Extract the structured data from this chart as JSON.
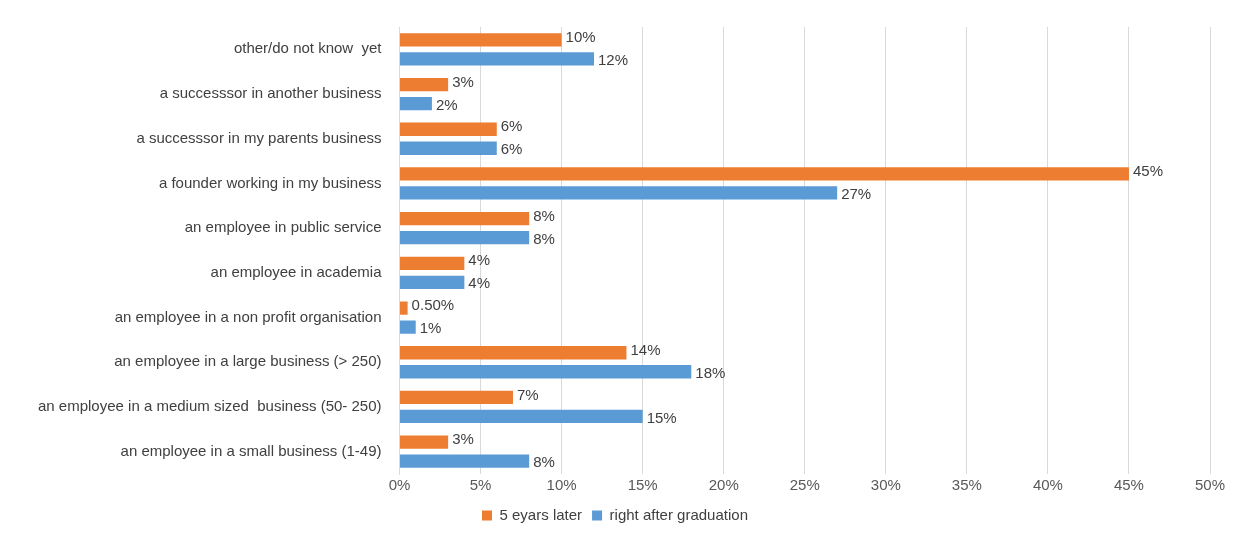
{
  "chart_data": {
    "type": "bar",
    "orientation": "horizontal",
    "categories": [
      "other/do not know  yet",
      "a successsor in another business",
      "a successsor in my parents business",
      "a founder working in my business",
      "an employee in public service",
      "an employee in academia",
      "an employee in a non profit organisation",
      "an employee in a large business (> 250)",
      "an employee in a medium sized  business (50- 250)",
      "an employee in a small business (1-49)"
    ],
    "series": [
      {
        "name": "5 eyars later",
        "color": "#ed7d31",
        "values": [
          10,
          3,
          6,
          45,
          8,
          4,
          0.5,
          14,
          7,
          3
        ],
        "value_labels": [
          "10%",
          "3%",
          "6%",
          "45%",
          "8%",
          "4%",
          "0.50%",
          "14%",
          "7%",
          "3%"
        ]
      },
      {
        "name": "right after graduation",
        "color": "#5b9bd5",
        "values": [
          12,
          2,
          6,
          27,
          8,
          4,
          1,
          18,
          15,
          8
        ],
        "value_labels": [
          "12%",
          "2%",
          "6%",
          "27%",
          "8%",
          "4%",
          "1%",
          "18%",
          "15%",
          "8%"
        ]
      }
    ],
    "xlim": [
      0,
      50
    ],
    "xticks": [
      {
        "value": 0,
        "label": "0%"
      },
      {
        "value": 5,
        "label": "5%"
      },
      {
        "value": 10,
        "label": "10%"
      },
      {
        "value": 15,
        "label": "15%"
      },
      {
        "value": 20,
        "label": "20%"
      },
      {
        "value": 25,
        "label": "25%"
      },
      {
        "value": 30,
        "label": "30%"
      },
      {
        "value": 35,
        "label": "35%"
      },
      {
        "value": 40,
        "label": "40%"
      },
      {
        "value": 45,
        "label": "45%"
      },
      {
        "value": 50,
        "label": "50%"
      }
    ],
    "grid": "x",
    "legend": "bottom"
  }
}
